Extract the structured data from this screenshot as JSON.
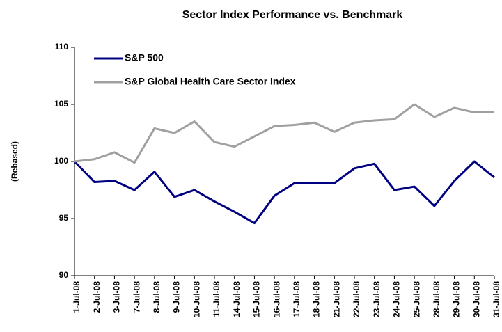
{
  "chart_data": {
    "type": "line",
    "title": "Sector Index Performance vs. Benchmark",
    "y_label": "(Rebased)",
    "categories": [
      "1-Jul-08",
      "2-Jul-08",
      "3-Jul-08",
      "7-Jul-08",
      "8-Jul-08",
      "9-Jul-08",
      "10-Jul-08",
      "11-Jul-08",
      "14-Jul-08",
      "15-Jul-08",
      "16-Jul-08",
      "17-Jul-08",
      "18-Jul-08",
      "21-Jul-08",
      "22-Jul-08",
      "23-Jul-08",
      "24-Jul-08",
      "25-Jul-08",
      "28-Jul-08",
      "29-Jul-08",
      "30-Jul-08",
      "31-Jul-08"
    ],
    "series": [
      {
        "name": "S&P 500",
        "color": "#000080",
        "values": [
          100,
          98.2,
          98.3,
          97.5,
          99.1,
          96.9,
          97.5,
          96.5,
          95.6,
          94.6,
          97.0,
          98.1,
          98.1,
          98.1,
          99.4,
          99.8,
          97.5,
          97.8,
          96.1,
          98.3,
          100.0,
          98.6
        ]
      },
      {
        "name": "S&P Global Health Care Sector Index",
        "color": "#a0a0a0",
        "values": [
          100,
          100.2,
          100.8,
          99.9,
          102.9,
          102.5,
          103.5,
          101.7,
          101.3,
          102.2,
          103.1,
          103.2,
          103.4,
          102.6,
          103.4,
          103.6,
          103.7,
          105.0,
          103.9,
          104.7,
          104.3,
          104.3
        ]
      }
    ],
    "ylim": [
      90,
      110
    ],
    "yticks": [
      90,
      95,
      100,
      105,
      110
    ],
    "grid": false,
    "legend": "upper left"
  }
}
